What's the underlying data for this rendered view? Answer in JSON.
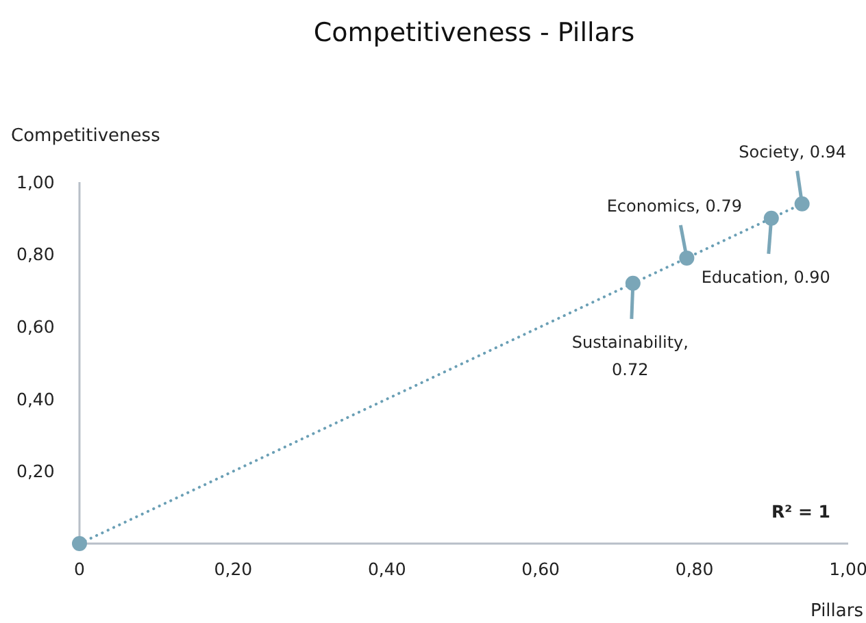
{
  "chart_data": {
    "type": "scatter",
    "title": "Competitiveness - Pillars",
    "xlabel": "Pillars",
    "ylabel": "Competitiveness",
    "xlim": [
      0,
      1
    ],
    "ylim": [
      0,
      1
    ],
    "xticks": [
      0,
      {
        "value": 0.2,
        "label": "0,20"
      },
      {
        "value": 0.4,
        "label": "0,40"
      },
      {
        "value": 0.6,
        "label": "0,60"
      },
      {
        "value": 0.8,
        "label": "0,80"
      },
      {
        "value": 1,
        "label": "1,00"
      }
    ],
    "yticks": [
      {
        "value": 0.2,
        "label": "0,20"
      },
      {
        "value": 0.4,
        "label": "0,40"
      },
      {
        "value": 0.6,
        "label": "0,60"
      },
      {
        "value": 0.8,
        "label": "0,80"
      },
      {
        "value": 1,
        "label": "1,00"
      }
    ],
    "marker": "circle",
    "series": [
      {
        "type": "line",
        "color": "#6a9fb5",
        "x": [
          0,
          0.94
        ],
        "values": [
          0,
          0.94
        ],
        "line_style": "dotted",
        "marker": "none"
      },
      {
        "color": "#7aa6b8",
        "x": [
          0,
          0.72,
          0.79,
          0.9,
          0.94
        ],
        "values": [
          0,
          0.72,
          0.79,
          0.9,
          0.94
        ],
        "value_labels": [
          null,
          "Sustainability, 0.72",
          "Economics, 0.79",
          "Education, 0.90",
          "Society, 0.94"
        ]
      }
    ],
    "annotations": [
      "R² = 1"
    ]
  }
}
